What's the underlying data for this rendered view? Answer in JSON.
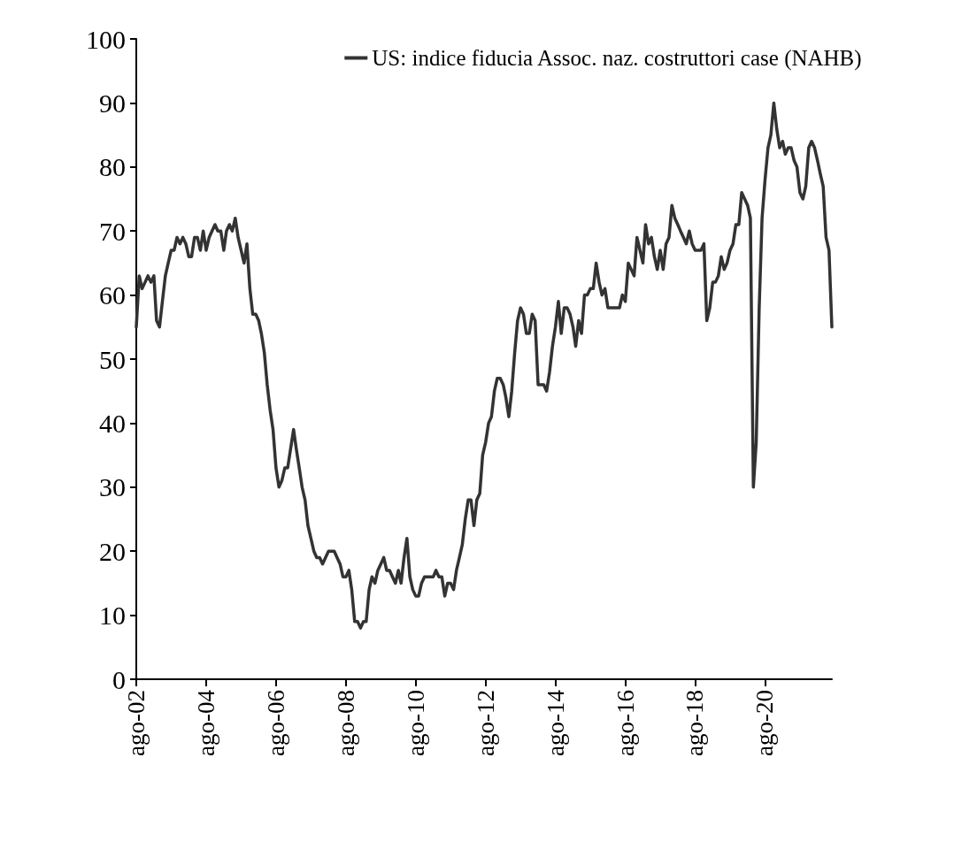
{
  "chart_data": {
    "type": "line",
    "x": [
      "2002-08",
      "2002-09",
      "2002-10",
      "2002-11",
      "2002-12",
      "2003-01",
      "2003-02",
      "2003-03",
      "2003-04",
      "2003-05",
      "2003-06",
      "2003-07",
      "2003-08",
      "2003-09",
      "2003-10",
      "2003-11",
      "2003-12",
      "2004-01",
      "2004-02",
      "2004-03",
      "2004-04",
      "2004-05",
      "2004-06",
      "2004-07",
      "2004-08",
      "2004-09",
      "2004-10",
      "2004-11",
      "2004-12",
      "2005-01",
      "2005-02",
      "2005-03",
      "2005-04",
      "2005-05",
      "2005-06",
      "2005-07",
      "2005-08",
      "2005-09",
      "2005-10",
      "2005-11",
      "2005-12",
      "2006-01",
      "2006-02",
      "2006-03",
      "2006-04",
      "2006-05",
      "2006-06",
      "2006-07",
      "2006-08",
      "2006-09",
      "2006-10",
      "2006-11",
      "2006-12",
      "2007-01",
      "2007-02",
      "2007-03",
      "2007-04",
      "2007-05",
      "2007-06",
      "2007-07",
      "2007-08",
      "2007-09",
      "2007-10",
      "2007-11",
      "2007-12",
      "2008-01",
      "2008-02",
      "2008-03",
      "2008-04",
      "2008-05",
      "2008-06",
      "2008-07",
      "2008-08",
      "2008-09",
      "2008-10",
      "2008-11",
      "2008-12",
      "2009-01",
      "2009-02",
      "2009-03",
      "2009-04",
      "2009-05",
      "2009-06",
      "2009-07",
      "2009-08",
      "2009-09",
      "2009-10",
      "2009-11",
      "2009-12",
      "2010-01",
      "2010-02",
      "2010-03",
      "2010-04",
      "2010-05",
      "2010-06",
      "2010-07",
      "2010-08",
      "2010-09",
      "2010-10",
      "2010-11",
      "2010-12",
      "2011-01",
      "2011-02",
      "2011-03",
      "2011-04",
      "2011-05",
      "2011-06",
      "2011-07",
      "2011-08",
      "2011-09",
      "2011-10",
      "2011-11",
      "2011-12",
      "2012-01",
      "2012-02",
      "2012-03",
      "2012-04",
      "2012-05",
      "2012-06",
      "2012-07",
      "2012-08",
      "2012-09",
      "2012-10",
      "2012-11",
      "2012-12",
      "2013-01",
      "2013-02",
      "2013-03",
      "2013-04",
      "2013-05",
      "2013-06",
      "2013-07",
      "2013-08",
      "2013-09",
      "2013-10",
      "2013-11",
      "2013-12",
      "2014-01",
      "2014-02",
      "2014-03",
      "2014-04",
      "2014-05",
      "2014-06",
      "2014-07",
      "2014-08",
      "2014-09",
      "2014-10",
      "2014-11",
      "2014-12",
      "2015-01",
      "2015-02",
      "2015-03",
      "2015-04",
      "2015-05",
      "2015-06",
      "2015-07",
      "2015-08",
      "2015-09",
      "2015-10",
      "2015-11",
      "2015-12",
      "2016-01",
      "2016-02",
      "2016-03",
      "2016-04",
      "2016-05",
      "2016-06",
      "2016-07",
      "2016-08",
      "2016-09",
      "2016-10",
      "2016-11",
      "2016-12",
      "2017-01",
      "2017-02",
      "2017-03",
      "2017-04",
      "2017-05",
      "2017-06",
      "2017-07",
      "2017-08",
      "2017-09",
      "2017-10",
      "2017-11",
      "2017-12",
      "2018-01",
      "2018-02",
      "2018-03",
      "2018-04",
      "2018-05",
      "2018-06",
      "2018-07",
      "2018-08",
      "2018-09",
      "2018-10",
      "2018-11",
      "2018-12",
      "2019-01",
      "2019-02",
      "2019-03",
      "2019-04",
      "2019-05",
      "2019-06",
      "2019-07",
      "2019-08",
      "2019-09",
      "2019-10",
      "2019-11",
      "2019-12",
      "2020-01",
      "2020-02",
      "2020-03",
      "2020-04",
      "2020-05",
      "2020-06",
      "2020-07",
      "2020-08",
      "2020-09",
      "2020-10",
      "2020-11",
      "2020-12",
      "2021-01",
      "2021-02",
      "2021-03",
      "2021-04",
      "2021-05",
      "2021-06",
      "2021-07",
      "2021-08",
      "2021-09",
      "2021-10",
      "2021-11",
      "2021-12",
      "2022-01",
      "2022-02",
      "2022-03",
      "2022-04",
      "2022-05",
      "2022-06",
      "2022-07"
    ],
    "series": [
      {
        "name": "US: indice fiducia Assoc. naz. costruttori case (NAHB)",
        "color": "#333333",
        "values": [
          55,
          63,
          61,
          62,
          63,
          62,
          63,
          56,
          55,
          59,
          63,
          65,
          67,
          67,
          69,
          68,
          69,
          68,
          66,
          66,
          69,
          69,
          67,
          70,
          67,
          69,
          70,
          71,
          70,
          70,
          67,
          70,
          71,
          70,
          72,
          69,
          67,
          65,
          68,
          61,
          57,
          57,
          56,
          54,
          51,
          46,
          42,
          39,
          33,
          30,
          31,
          33,
          33,
          36,
          39,
          36,
          33,
          30,
          28,
          24,
          22,
          20,
          19,
          19,
          18,
          19,
          20,
          20,
          20,
          19,
          18,
          16,
          16,
          17,
          14,
          9,
          9,
          8,
          9,
          9,
          14,
          16,
          15,
          17,
          18,
          19,
          17,
          17,
          16,
          15,
          17,
          15,
          19,
          22,
          16,
          14,
          13,
          13,
          15,
          16,
          16,
          16,
          16,
          17,
          16,
          16,
          13,
          15,
          15,
          14,
          17,
          19,
          21,
          25,
          28,
          28,
          24,
          28,
          29,
          35,
          37,
          40,
          41,
          45,
          47,
          47,
          46,
          44,
          41,
          45,
          51,
          56,
          58,
          57,
          54,
          54,
          57,
          56,
          46,
          46,
          46,
          45,
          48,
          52,
          55,
          59,
          54,
          58,
          58,
          57,
          55,
          52,
          56,
          54,
          60,
          60,
          61,
          61,
          65,
          62,
          60,
          61,
          58,
          58,
          58,
          58,
          58,
          60,
          59,
          65,
          64,
          63,
          69,
          67,
          65,
          71,
          68,
          69,
          66,
          64,
          67,
          64,
          68,
          69,
          74,
          72,
          71,
          70,
          69,
          68,
          70,
          68,
          67,
          67,
          67,
          68,
          56,
          58,
          62,
          62,
          63,
          66,
          64,
          65,
          67,
          68,
          71,
          71,
          76,
          75,
          74,
          72,
          30,
          37,
          58,
          72,
          78,
          83,
          85,
          90,
          86,
          83,
          84,
          82,
          83,
          83,
          81,
          80,
          76,
          75,
          77,
          83,
          84,
          83,
          81,
          79,
          77,
          69,
          67,
          55
        ]
      }
    ],
    "xlim": [
      "2002-08",
      "2022-07"
    ],
    "xticks": [
      {
        "value": "2002-08",
        "label": "ago-02"
      },
      {
        "value": "2004-08",
        "label": "ago-04"
      },
      {
        "value": "2006-08",
        "label": "ago-06"
      },
      {
        "value": "2008-08",
        "label": "ago-08"
      },
      {
        "value": "2010-08",
        "label": "ago-10"
      },
      {
        "value": "2012-08",
        "label": "ago-12"
      },
      {
        "value": "2014-08",
        "label": "ago-14"
      },
      {
        "value": "2016-08",
        "label": "ago-16"
      },
      {
        "value": "2018-08",
        "label": "ago-18"
      },
      {
        "value": "2020-08",
        "label": "ago-20"
      }
    ],
    "ylim": [
      0,
      100
    ],
    "yticks": [
      0,
      10,
      20,
      30,
      40,
      50,
      60,
      70,
      80,
      90,
      100
    ],
    "grid": false,
    "legend": "top right",
    "marker": "none",
    "line_style": "solid"
  }
}
